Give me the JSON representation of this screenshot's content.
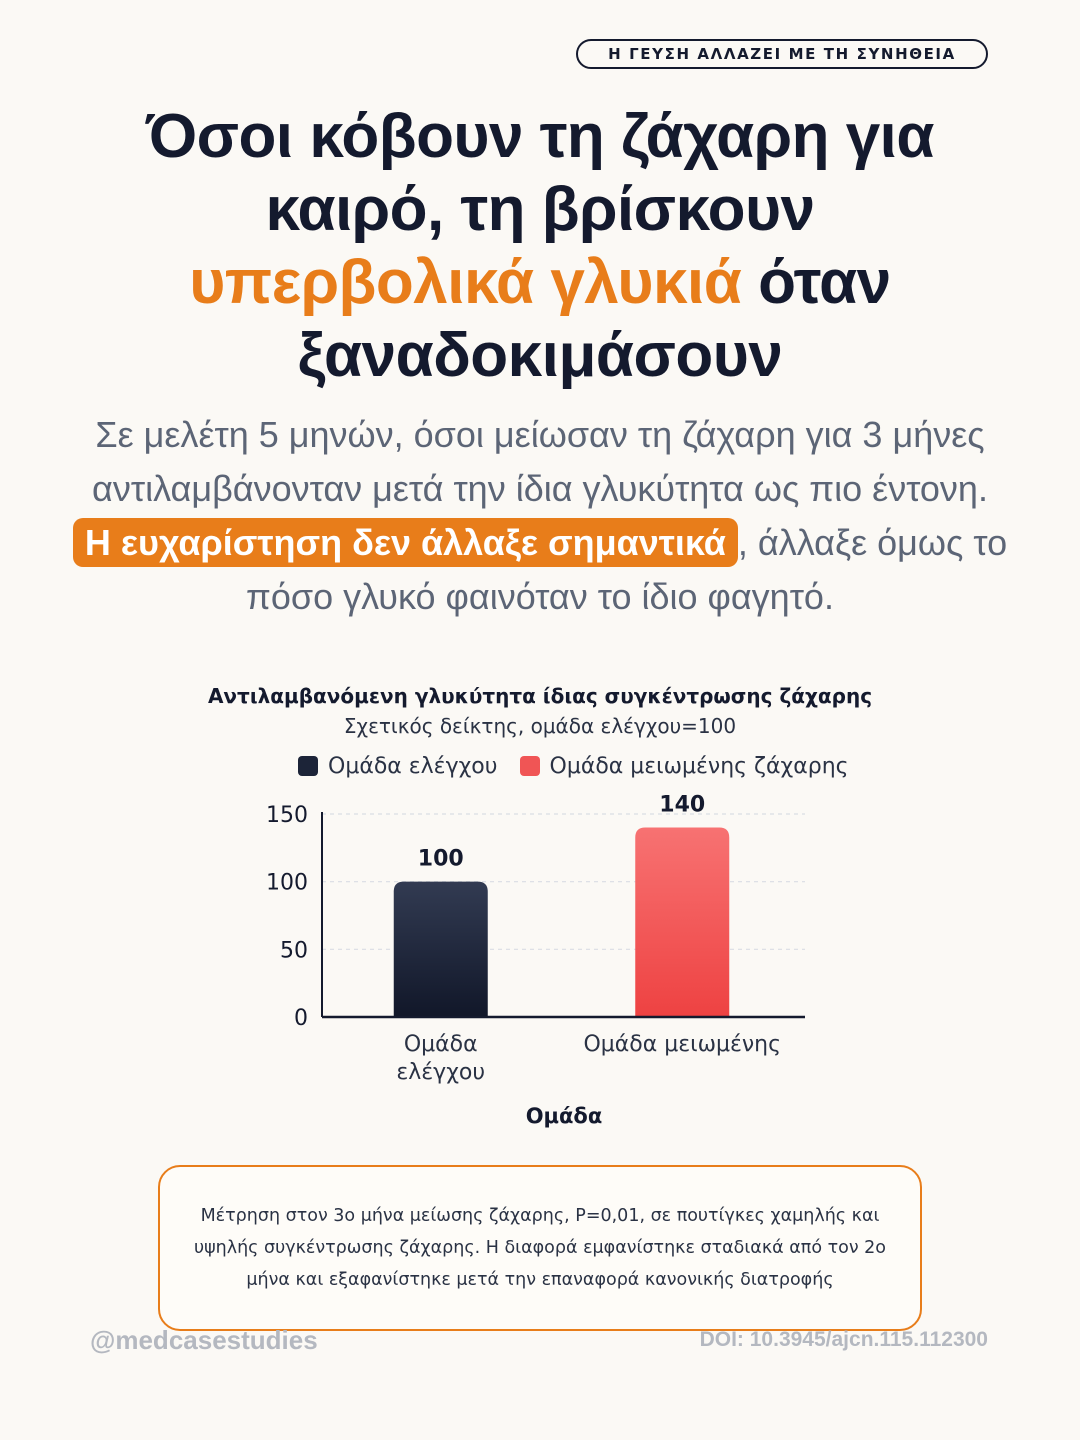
{
  "badge": "Η ΓΕΥΣΗ ΑΛΛΑΖΕΙ ΜΕ ΤΗ ΣΥΝΗΘΕΙΑ",
  "headline": {
    "line1": "Όσοι κόβουν τη ζάχαρη για",
    "line2": "καιρό, τη βρίσκουν",
    "accent": "υπερβολικά γλυκιά",
    "after_accent": " όταν",
    "line4": "ξαναδοκιμάσουν"
  },
  "subtitle": {
    "before": "Σε μελέτη 5 μηνών, όσοι μείωσαν τη ζάχαρη για 3 μήνες αντιλαμβάνονταν μετά την ίδια γλυκύτητα ως πιο έντονη. ",
    "highlight": "Η ευχαρίστηση δεν άλλαξε σημαντικά",
    "after": ", άλλαξε όμως το πόσο γλυκό φαινόταν το ίδιο φαγητό."
  },
  "colors": {
    "accent": "#e87d1a",
    "ink": "#141a2e",
    "control_top": "#323b52",
    "control_bottom": "#111729",
    "reduced_top": "#f77272",
    "reduced_bottom": "#ee4242"
  },
  "chart_data": {
    "type": "bar",
    "title": "Αντιλαμβανόμενη γλυκύτητα ίδιας συγκέντρωσης ζάχαρης",
    "subtitle": "Σχετικός δείκτης, ομάδα ελέγχου=100",
    "xlabel": "Ομάδα",
    "ylabel": "",
    "ylim": [
      0,
      150
    ],
    "yticks": [
      0,
      50,
      100,
      150
    ],
    "grid": true,
    "legend_position": "top",
    "categories": [
      "Ομάδα ελέγχου",
      "Ομάδα μειωμένης"
    ],
    "series": [
      {
        "name": "Ομάδα ελέγχου",
        "values": [
          100,
          null
        ]
      },
      {
        "name": "Ομάδα μειωμένης ζάχαρης",
        "values": [
          null,
          140
        ]
      }
    ],
    "data_labels": [
      "100",
      "140"
    ]
  },
  "note": "Μέτρηση στον 3ο μήνα μείωσης ζάχαρης, P=0,01, σε πουτίγκες χαμηλής και υψηλής συγκέντρωσης ζάχαρης. Η διαφορά εμφανίστηκε σταδιακά από τον 2ο μήνα και εξαφανίστηκε μετά την επαναφορά κανονικής διατροφής",
  "footer": {
    "handle": "@medcasestudies",
    "doi": "DOI: 10.3945/ajcn.115.112300"
  }
}
